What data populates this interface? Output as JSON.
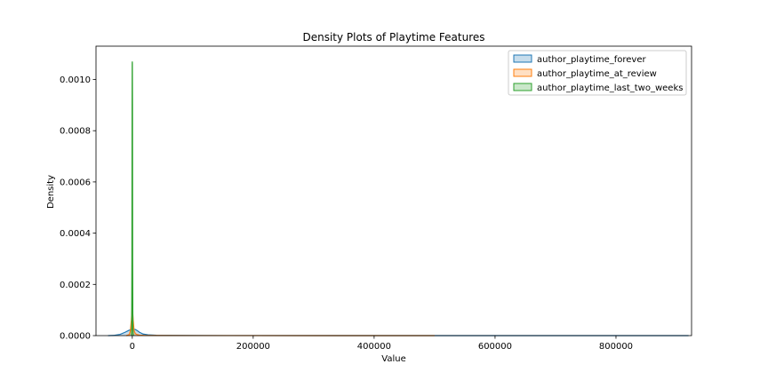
{
  "chart_data": {
    "type": "area",
    "title": "Density Plots of Playtime Features",
    "xlabel": "Value",
    "ylabel": "Density",
    "xlim": [
      -60000,
      925000
    ],
    "ylim": [
      0,
      0.00113
    ],
    "x_ticks": [
      0,
      200000,
      400000,
      600000,
      800000
    ],
    "x_tick_labels": [
      "0",
      "200000",
      "400000",
      "600000",
      "800000"
    ],
    "y_ticks": [
      0,
      0.0002,
      0.0004,
      0.0006,
      0.0008,
      0.001
    ],
    "y_tick_labels": [
      "0.0000",
      "0.0002",
      "0.0004",
      "0.0006",
      "0.0008",
      "0.0010"
    ],
    "grid": false,
    "legend_position": "top-right",
    "series": [
      {
        "name": "author_playtime_forever",
        "color": "#1f77b4",
        "x": [
          -40000,
          -30000,
          -20000,
          -12000,
          -6000,
          -2000,
          0,
          2000,
          5000,
          8000,
          12000,
          18000,
          26000,
          40000,
          60000,
          100000,
          200000,
          400000,
          600000,
          800000,
          920000
        ],
        "y": [
          0,
          1e-06,
          5e-06,
          1.3e-05,
          2e-05,
          2.4e-05,
          2.5e-05,
          2.5e-05,
          2.4e-05,
          2e-05,
          1.3e-05,
          6e-06,
          3e-06,
          1.5e-06,
          8e-07,
          4e-07,
          2e-07,
          8e-08,
          4e-08,
          2e-08,
          0
        ]
      },
      {
        "name": "author_playtime_at_review",
        "color": "#ff7f0e",
        "x": [
          -10000,
          -5000,
          -3000,
          -1500,
          -500,
          0,
          500,
          1500,
          3000,
          5000,
          8000,
          12000,
          20000,
          40000,
          100000,
          300000,
          500000
        ],
        "y": [
          0,
          4e-06,
          2e-05,
          6e-05,
          0.0001,
          0.00011,
          0.0001,
          6e-05,
          2e-05,
          8e-06,
          4e-06,
          2e-06,
          1e-06,
          5e-07,
          2e-07,
          5e-08,
          0
        ]
      },
      {
        "name": "author_playtime_last_two_weeks",
        "color": "#2ca02c",
        "x": [
          -1500,
          -1000,
          -600,
          -300,
          -100,
          0,
          100,
          300,
          600,
          1000,
          1500,
          2500
        ],
        "y": [
          0,
          3e-05,
          0.0003,
          0.0009,
          0.00106,
          0.00107,
          0.00106,
          0.0009,
          0.0003,
          3e-05,
          3e-06,
          0
        ]
      }
    ]
  }
}
